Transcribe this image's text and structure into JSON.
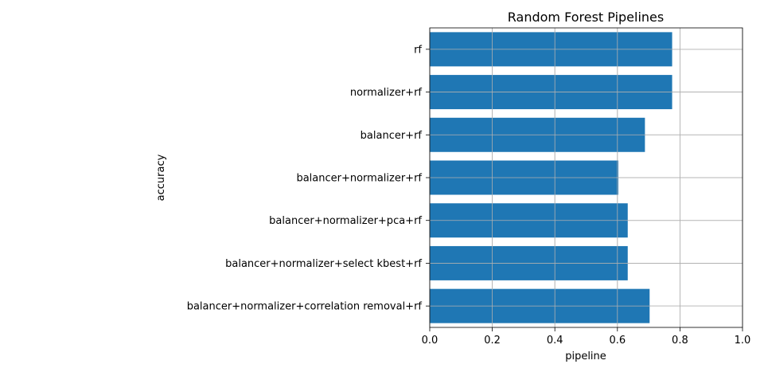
{
  "chart_data": {
    "type": "bar",
    "orientation": "horizontal",
    "title": "Random Forest Pipelines",
    "xlabel": "pipeline",
    "ylabel": "accuracy",
    "categories": [
      "rf",
      "normalizer+rf",
      "balancer+rf",
      "balancer+normalizer+rf",
      "balancer+normalizer+pca+rf",
      "balancer+normalizer+select kbest+rf",
      "balancer+normalizer+correlation removal+rf"
    ],
    "values": [
      0.775,
      0.775,
      0.688,
      0.603,
      0.633,
      0.633,
      0.703
    ],
    "xlim": [
      0,
      1.0
    ],
    "xticks": [
      "0.0",
      "0.2",
      "0.4",
      "0.6",
      "0.8",
      "1.0"
    ],
    "grid": true,
    "bar_color": "#1f77b4",
    "grid_color": "#b0b0b0"
  }
}
